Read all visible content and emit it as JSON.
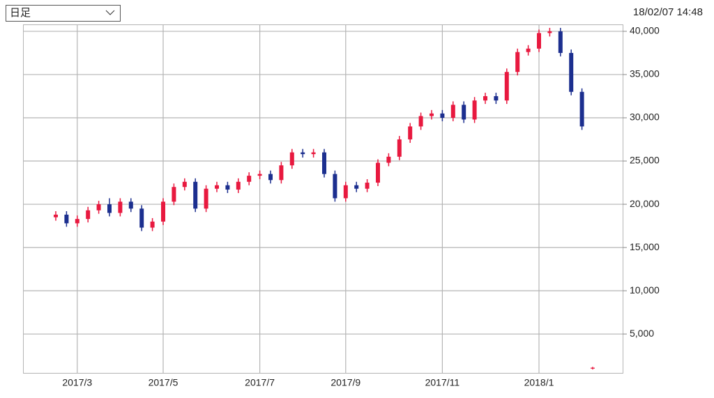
{
  "controls": {
    "period_select": "日足",
    "timestamp": "18/02/07 14:48"
  },
  "chart_data": {
    "type": "candlestick",
    "categories": [
      null,
      null,
      "2017/3",
      null,
      null,
      null,
      null,
      null,
      null,
      null,
      "2017/5",
      null,
      null,
      null,
      null,
      null,
      null,
      null,
      null,
      "2017/7",
      null,
      null,
      null,
      null,
      null,
      null,
      null,
      "2017/9",
      null,
      null,
      null,
      null,
      null,
      null,
      null,
      null,
      "2017/11",
      null,
      null,
      null,
      null,
      null,
      null,
      null,
      null,
      "2018/1",
      null,
      null,
      null,
      null,
      null
    ],
    "open": [
      18500,
      18800,
      17800,
      18300,
      19300,
      20000,
      19000,
      20300,
      19500,
      17300,
      18000,
      20300,
      22000,
      22600,
      19500,
      21800,
      22200,
      21700,
      22600,
      23300,
      23500,
      22800,
      24500,
      26000,
      25800,
      26000,
      23500,
      20700,
      22200,
      21800,
      22500,
      24800,
      25500,
      27500,
      29000,
      30200,
      30500,
      30000,
      31500,
      29800,
      32000,
      32500,
      32000,
      35300,
      37600,
      38000,
      39800,
      40000,
      37500,
      33000,
      1000
    ],
    "high": [
      19200,
      19200,
      18700,
      19700,
      20400,
      20700,
      20700,
      20700,
      19900,
      18400,
      20700,
      22400,
      23000,
      23000,
      22200,
      22600,
      22600,
      23000,
      23700,
      23900,
      23900,
      24900,
      26400,
      26400,
      26400,
      26400,
      23900,
      22600,
      22600,
      22900,
      25200,
      25900,
      27900,
      29400,
      30600,
      30900,
      30900,
      31900,
      31900,
      32400,
      32900,
      32900,
      35700,
      38000,
      38400,
      40200,
      40400,
      40400,
      37900,
      33400,
      1200
    ],
    "low": [
      18100,
      17400,
      17400,
      17900,
      18900,
      18600,
      18600,
      19100,
      16900,
      16900,
      17600,
      19900,
      21600,
      19100,
      19100,
      21400,
      21300,
      21300,
      22200,
      22900,
      22400,
      22400,
      24100,
      25400,
      25400,
      23100,
      20300,
      20300,
      21400,
      21400,
      22100,
      24400,
      25100,
      27100,
      28600,
      29800,
      29600,
      29600,
      29400,
      29400,
      31600,
      31600,
      31600,
      34900,
      37200,
      37600,
      39400,
      37100,
      32600,
      28600,
      900
    ],
    "close": [
      18800,
      17800,
      18300,
      19300,
      20000,
      19000,
      20300,
      19500,
      17300,
      18000,
      20300,
      22000,
      22600,
      19500,
      21800,
      22200,
      21700,
      22600,
      23300,
      23500,
      22800,
      24500,
      26000,
      25800,
      26000,
      23500,
      20700,
      22200,
      21800,
      22500,
      24800,
      25500,
      27500,
      29000,
      30200,
      30500,
      30000,
      31500,
      29800,
      32000,
      32500,
      32000,
      35300,
      37600,
      38000,
      39800,
      40000,
      37500,
      33000,
      29000,
      1100
    ],
    "up_color": "#e8193f",
    "down_color": "#1c2f8f",
    "ylim": [
      500,
      40800
    ],
    "yticks": [
      {
        "value": 5000,
        "label": "5,000"
      },
      {
        "value": 10000,
        "label": "10,000"
      },
      {
        "value": 15000,
        "label": "15,000"
      },
      {
        "value": 20000,
        "label": "20,000"
      },
      {
        "value": 25000,
        "label": "25,000"
      },
      {
        "value": 30000,
        "label": "30,000"
      },
      {
        "value": 35000,
        "label": "35,000"
      },
      {
        "value": 40000,
        "label": "40,000"
      }
    ],
    "grid": true
  }
}
